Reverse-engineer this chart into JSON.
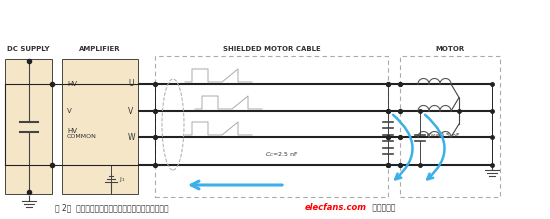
{
  "bg_color": "#ffffff",
  "title_text": "图 2，  将驱动电缆屏蔽可使噪声电流安全分流入地。",
  "elecfans_text": "elecfans.com",
  "elecfans_color": "#ff0000",
  "suffix_text": " 电子发烧友",
  "dc_supply_label": "DC SUPPLY",
  "amplifier_label": "AMPLIFIER",
  "cable_label": "SHIELDED MOTOR CABLE",
  "motor_label": "MOTOR",
  "hv_label": "HV",
  "hv2_label": "HV",
  "common_label": "COMMON",
  "u_label": "U",
  "v_label": "V",
  "w_label": "W",
  "j1_label": "J",
  "line_color": "#444444",
  "amp_fill": "#f5e6c8",
  "dc_fill": "#f5e6c8",
  "dashed_color": "#aaaaaa",
  "arrow_color": "#3bb0e8",
  "wire_color": "#222222"
}
